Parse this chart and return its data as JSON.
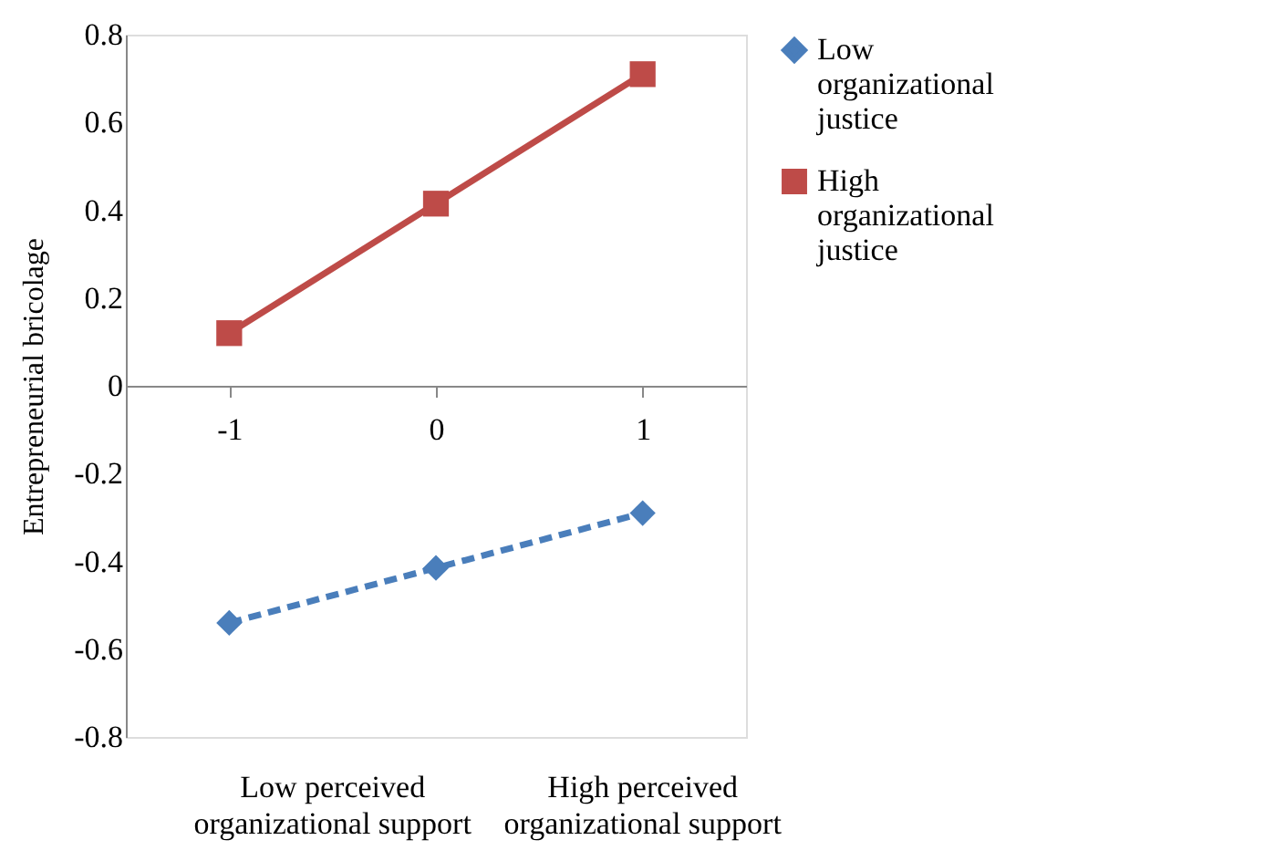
{
  "chart_data": {
    "type": "line",
    "ylabel": "Entrepreneurial  bricolage",
    "categories": [
      "-1",
      "0",
      "1"
    ],
    "series": [
      {
        "name": "Low organizational justice",
        "color": "#4a7ebb",
        "values": [
          -0.54,
          -0.415,
          -0.29
        ],
        "marker": "diamond",
        "line_style": "dashed"
      },
      {
        "name": "High organizational justice",
        "color": "#be4b48",
        "values": [
          0.12,
          0.415,
          0.71
        ],
        "marker": "square",
        "line_style": "solid"
      }
    ],
    "ylim": [
      -0.8,
      0.8
    ],
    "yticks": [
      -0.8,
      -0.6,
      -0.4,
      -0.2,
      0,
      0.2,
      0.4,
      0.6,
      0.8
    ],
    "annotations": [
      "Low perceived\norganizational support",
      "High perceived\norganizational support"
    ],
    "grid": false,
    "legend": "right"
  }
}
